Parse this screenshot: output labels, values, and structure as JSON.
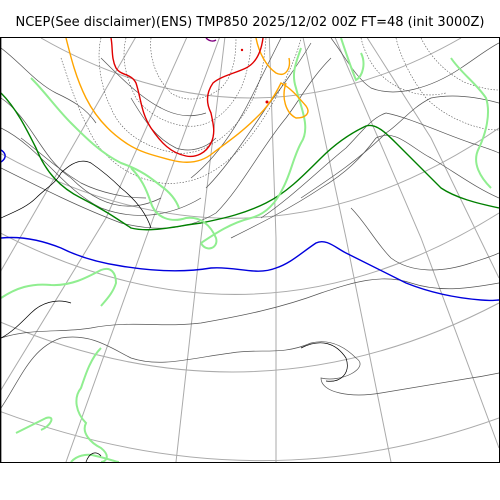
{
  "title": "NCEP(See disclaimer)(ENS) TMP850 2025/12/02 00Z FT=48 (init 3000Z)",
  "colors": {
    "coastline": "#000000",
    "graticule": "#aaaaaa",
    "isotherm_minor": "#555555",
    "warm_zero": "#0000dd",
    "contour_green_dark": "#008000",
    "contour_light_green": "#90ee90",
    "contour_orange": "#ffa500",
    "contour_red": "#e00000",
    "contour_purple": "#800080"
  }
}
